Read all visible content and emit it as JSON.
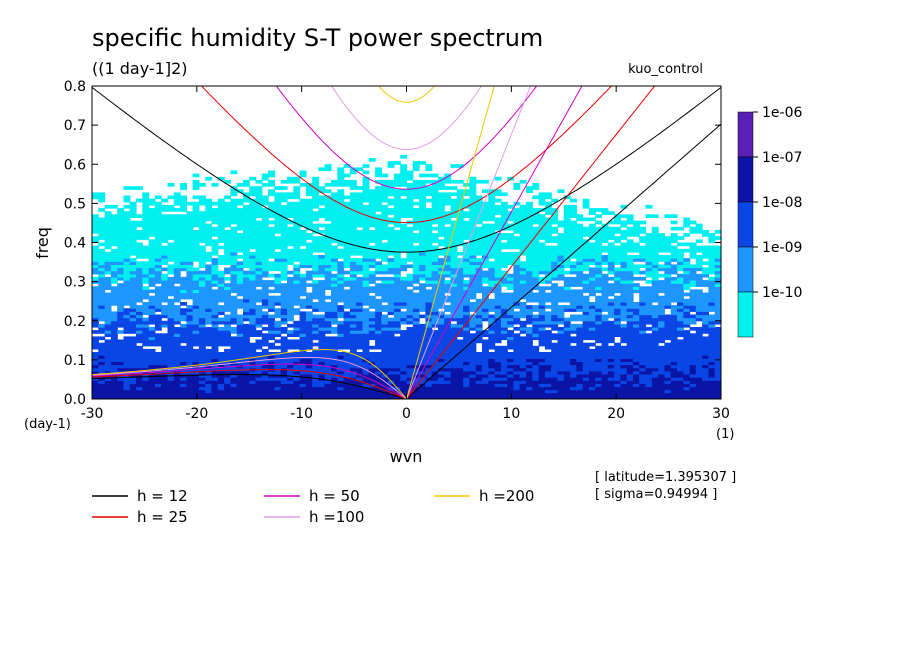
{
  "chart_data": {
    "type": "heatmap",
    "title": "specific humidity S-T power spectrum",
    "subtitle": "((1 day-1]2)",
    "run_label": "kuo_control",
    "xlabel": "wvn",
    "ylabel": "freq",
    "x_unit": "(1)",
    "y_unit": "(day-1)",
    "xlim": [
      -30,
      30
    ],
    "ylim": [
      0,
      0.8
    ],
    "x_ticks": [
      "-30",
      "-20",
      "-10",
      "0",
      "10",
      "20",
      "30"
    ],
    "y_ticks": [
      "0.0",
      "0.1",
      "0.2",
      "0.3",
      "0.4",
      "0.5",
      "0.6",
      "0.7",
      "0.8"
    ],
    "x_tick_values": [
      -30,
      -20,
      -10,
      0,
      10,
      20,
      30
    ],
    "y_tick_values": [
      0,
      0.1,
      0.2,
      0.3,
      0.4,
      0.5,
      0.6,
      0.7,
      0.8
    ],
    "colorbar": {
      "labels": [
        "1e-06",
        "1e-07",
        "1e-08",
        "1e-09",
        "1e-10"
      ],
      "colors": [
        "#5a1fb4",
        "#0a14a6",
        "#0a46e6",
        "#1e96ff",
        "#00f0f0"
      ]
    },
    "spectrum_bands": {
      "description": "approximate frequency at which each level is reached",
      "levels": [
        {
          "level": "1e-10",
          "upper_freq": 0.5,
          "color": "#00f0f0"
        },
        {
          "level": "1e-09",
          "upper_freq": 0.32,
          "color": "#1e96ff"
        },
        {
          "level": "1e-08",
          "upper_freq": 0.2,
          "color": "#0a46e6"
        },
        {
          "level": "1e-07",
          "upper_freq": 0.06,
          "color": "#0a14a6"
        }
      ]
    },
    "dispersion_curves": [
      {
        "name": "h = 12",
        "color": "#000000"
      },
      {
        "name": "h = 25",
        "color": "#e60000"
      },
      {
        "name": "h = 50",
        "color": "#d200c8"
      },
      {
        "name": "h =100",
        "color": "#e69be6"
      },
      {
        "name": "h =200",
        "color": "#f0c800"
      }
    ],
    "annotations": [
      "[ latitude=1.395307 ]",
      "[ sigma=0.94994 ]"
    ]
  }
}
